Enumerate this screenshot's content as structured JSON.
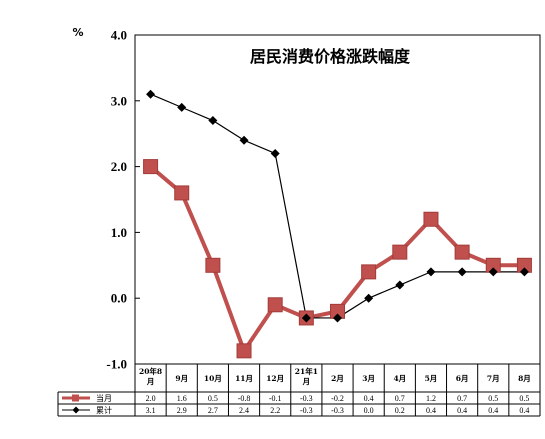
{
  "chart_data": {
    "type": "line",
    "title": "居民消费价格涨跌幅度",
    "ylabel": "%",
    "ylim": [
      -1.0,
      4.0
    ],
    "yticks": [
      "4.0",
      "3.0",
      "2.0",
      "1.0",
      "0.0",
      "-1.0"
    ],
    "ytick_values": [
      4,
      3,
      2,
      1,
      0,
      -1
    ],
    "grid": false,
    "legend_position": "table-left",
    "categories": [
      "20年8月",
      "9月",
      "10月",
      "11月",
      "12月",
      "21年1月",
      "2月",
      "3月",
      "4月",
      "5月",
      "6月",
      "7月",
      "8月"
    ],
    "series": [
      {
        "name": "当月",
        "values": [
          2.0,
          1.6,
          0.5,
          -0.8,
          -0.1,
          -0.3,
          -0.2,
          0.4,
          0.7,
          1.2,
          0.7,
          0.5,
          0.5
        ],
        "labels": [
          "2.0",
          "1.6",
          "0.5",
          "-0.8",
          "-0.1",
          "-0.3",
          "-0.2",
          "0.4",
          "0.7",
          "1.2",
          "0.7",
          "0.5",
          "0.5"
        ],
        "color": "#c0504d",
        "marker": "square"
      },
      {
        "name": "累计",
        "values": [
          3.1,
          2.9,
          2.7,
          2.4,
          2.2,
          -0.3,
          -0.3,
          0.0,
          0.2,
          0.4,
          0.4,
          0.4,
          0.4
        ],
        "labels": [
          "3.1",
          "2.9",
          "2.7",
          "2.4",
          "2.2",
          "-0.3",
          "-0.3",
          "0.0",
          "0.2",
          "0.4",
          "0.4",
          "0.4",
          "0.4"
        ],
        "color": "#000000",
        "marker": "diamond"
      }
    ]
  }
}
